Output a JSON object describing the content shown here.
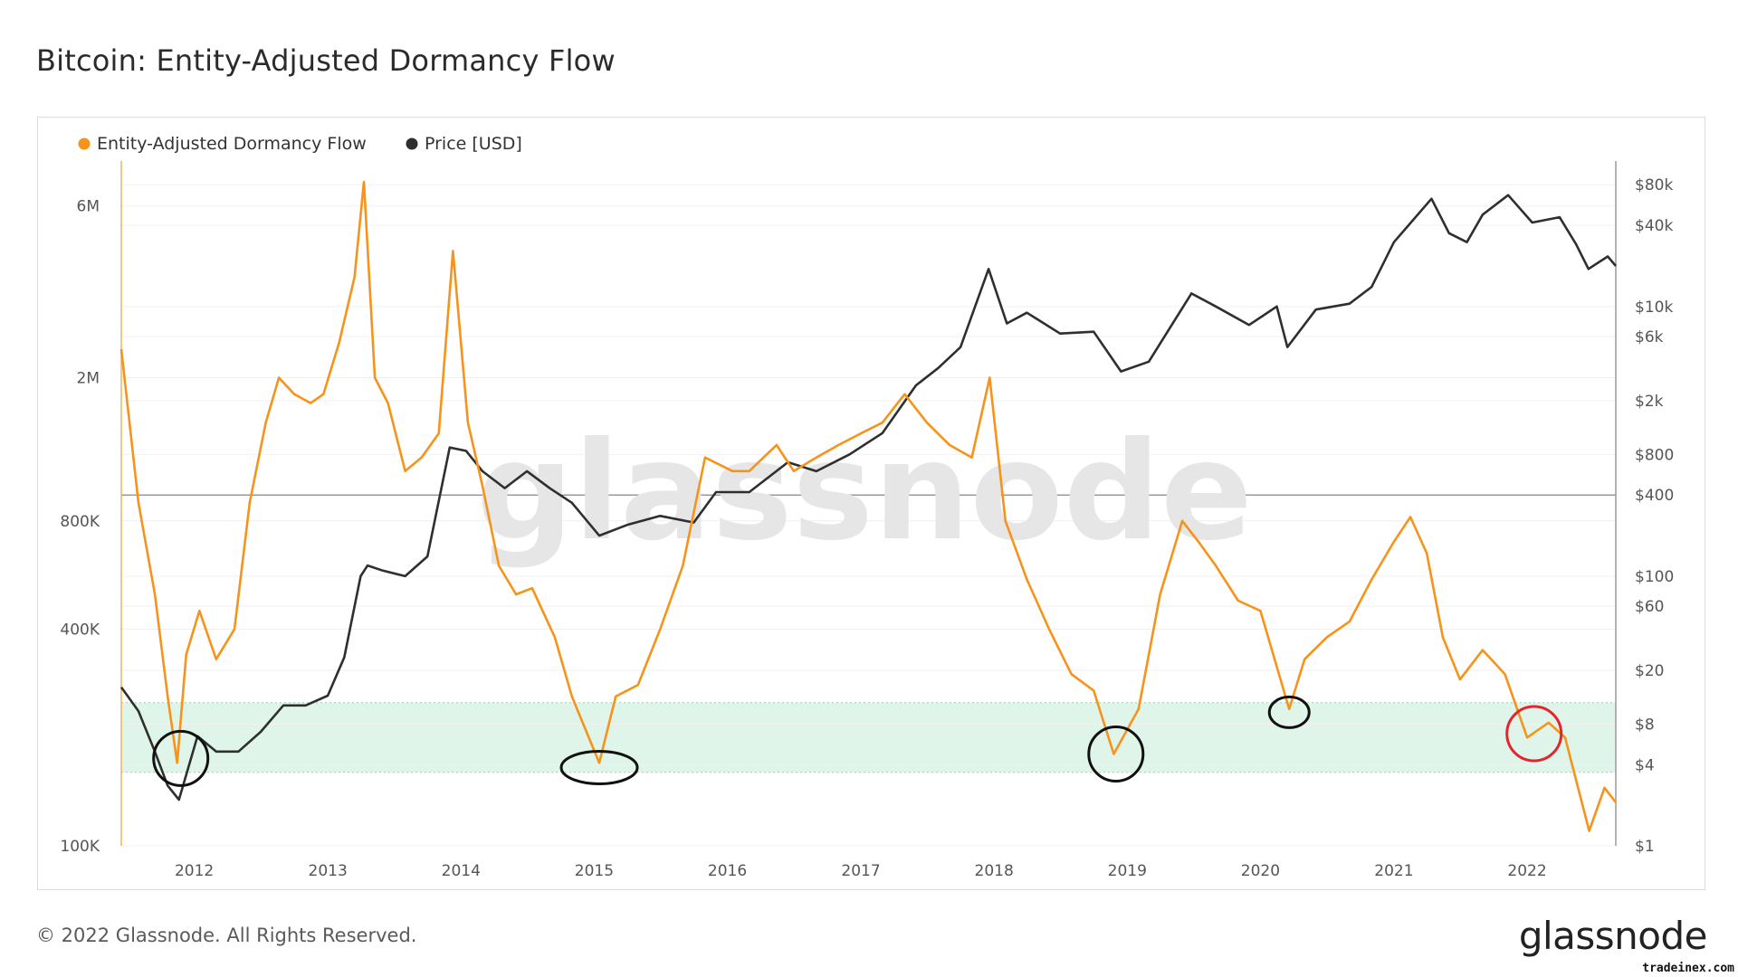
{
  "page": {
    "title": "Bitcoin: Entity-Adjusted Dormancy Flow"
  },
  "footer": {
    "copyright": "© 2022 Glassnode. All Rights Reserved.",
    "brand": "glassnode",
    "source_tag": "tradeinex.com"
  },
  "watermark": "glassnode",
  "colors": {
    "dormancy": "#f7931a",
    "price": "#2f2f2f",
    "band": "#dff5ea",
    "band_line": "#8fd3b0",
    "circle": "#111111",
    "circle_alert": "#e3262e"
  },
  "chart_data": {
    "type": "line",
    "legend": [
      {
        "name": "Entity-Adjusted Dormancy Flow",
        "color": "#f7931a"
      },
      {
        "name": "Price [USD]",
        "color": "#2f2f2f"
      }
    ],
    "legend_position": "top-left",
    "grid": true,
    "x_axis": {
      "type": "date",
      "ticks": [
        "2012",
        "2013",
        "2014",
        "2015",
        "2016",
        "2017",
        "2018",
        "2019",
        "2020",
        "2021",
        "2022"
      ],
      "range": [
        "2011-06-15",
        "2022-09-01"
      ]
    },
    "y_left": {
      "scale": "log",
      "range": [
        100000,
        8000000
      ],
      "ticks": [
        {
          "value": 100000,
          "label": "100K"
        },
        {
          "value": 400000,
          "label": "400K"
        },
        {
          "value": 800000,
          "label": "800K"
        },
        {
          "value": 2000000,
          "label": "2M"
        },
        {
          "value": 6000000,
          "label": "6M"
        }
      ]
    },
    "y_right": {
      "scale": "log",
      "range": [
        1,
        120000
      ],
      "ticks": [
        {
          "value": 1,
          "label": "$1"
        },
        {
          "value": 4,
          "label": "$4"
        },
        {
          "value": 8,
          "label": "$8"
        },
        {
          "value": 20,
          "label": "$20"
        },
        {
          "value": 60,
          "label": "$60"
        },
        {
          "value": 100,
          "label": "$100"
        },
        {
          "value": 400,
          "label": "$400"
        },
        {
          "value": 800,
          "label": "$800"
        },
        {
          "value": 2000,
          "label": "$2k"
        },
        {
          "value": 6000,
          "label": "$6k"
        },
        {
          "value": 10000,
          "label": "$10k"
        },
        {
          "value": 40000,
          "label": "$40k"
        },
        {
          "value": 80000,
          "label": "$80k"
        }
      ]
    },
    "band": {
      "from": 160000,
      "to": 250000
    },
    "series": [
      {
        "name": "Entity-Adjusted Dormancy Flow",
        "axis": "left",
        "points": [
          [
            "2011-06-15",
            2400000
          ],
          [
            "2011-08-01",
            900000
          ],
          [
            "2011-09-15",
            500000
          ],
          [
            "2011-10-20",
            260000
          ],
          [
            "2011-11-15",
            170000
          ],
          [
            "2011-12-10",
            340000
          ],
          [
            "2012-01-15",
            450000
          ],
          [
            "2012-03-01",
            330000
          ],
          [
            "2012-04-20",
            400000
          ],
          [
            "2012-06-01",
            900000
          ],
          [
            "2012-07-15",
            1500000
          ],
          [
            "2012-08-20",
            2000000
          ],
          [
            "2012-10-01",
            1800000
          ],
          [
            "2012-11-15",
            1700000
          ],
          [
            "2012-12-20",
            1800000
          ],
          [
            "2013-02-01",
            2500000
          ],
          [
            "2013-03-15",
            3800000
          ],
          [
            "2013-04-10",
            7000000
          ],
          [
            "2013-05-10",
            2000000
          ],
          [
            "2013-06-15",
            1700000
          ],
          [
            "2013-08-01",
            1100000
          ],
          [
            "2013-09-15",
            1200000
          ],
          [
            "2013-11-01",
            1400000
          ],
          [
            "2013-12-10",
            4500000
          ],
          [
            "2014-01-20",
            1500000
          ],
          [
            "2014-03-01",
            1000000
          ],
          [
            "2014-04-15",
            600000
          ],
          [
            "2014-06-01",
            500000
          ],
          [
            "2014-07-15",
            520000
          ],
          [
            "2014-09-15",
            380000
          ],
          [
            "2014-11-01",
            260000
          ],
          [
            "2015-01-15",
            170000
          ],
          [
            "2015-03-01",
            260000
          ],
          [
            "2015-05-01",
            280000
          ],
          [
            "2015-07-01",
            400000
          ],
          [
            "2015-09-01",
            600000
          ],
          [
            "2015-11-01",
            1200000
          ],
          [
            "2016-01-15",
            1100000
          ],
          [
            "2016-03-01",
            1100000
          ],
          [
            "2016-05-15",
            1300000
          ],
          [
            "2016-07-01",
            1100000
          ],
          [
            "2016-09-01",
            1200000
          ],
          [
            "2016-11-01",
            1300000
          ],
          [
            "2017-01-01",
            1400000
          ],
          [
            "2017-03-01",
            1500000
          ],
          [
            "2017-05-01",
            1800000
          ],
          [
            "2017-07-01",
            1500000
          ],
          [
            "2017-09-01",
            1300000
          ],
          [
            "2017-11-01",
            1200000
          ],
          [
            "2017-12-20",
            2000000
          ],
          [
            "2018-02-01",
            800000
          ],
          [
            "2018-04-01",
            550000
          ],
          [
            "2018-06-01",
            400000
          ],
          [
            "2018-08-01",
            300000
          ],
          [
            "2018-10-01",
            270000
          ],
          [
            "2018-11-25",
            180000
          ],
          [
            "2019-02-01",
            240000
          ],
          [
            "2019-04-01",
            500000
          ],
          [
            "2019-06-01",
            800000
          ],
          [
            "2019-07-15",
            700000
          ],
          [
            "2019-09-01",
            600000
          ],
          [
            "2019-11-01",
            480000
          ],
          [
            "2020-01-01",
            450000
          ],
          [
            "2020-03-20",
            240000
          ],
          [
            "2020-05-01",
            330000
          ],
          [
            "2020-07-01",
            380000
          ],
          [
            "2020-09-01",
            420000
          ],
          [
            "2020-11-01",
            550000
          ],
          [
            "2021-01-01",
            700000
          ],
          [
            "2021-02-15",
            820000
          ],
          [
            "2021-04-01",
            650000
          ],
          [
            "2021-05-15",
            380000
          ],
          [
            "2021-07-01",
            290000
          ],
          [
            "2021-09-01",
            350000
          ],
          [
            "2021-11-01",
            300000
          ],
          [
            "2022-01-01",
            200000
          ],
          [
            "2022-03-01",
            220000
          ],
          [
            "2022-04-15",
            200000
          ],
          [
            "2022-06-20",
            110000
          ],
          [
            "2022-08-01",
            145000
          ],
          [
            "2022-09-01",
            132000
          ]
        ]
      },
      {
        "name": "Price [USD]",
        "axis": "right",
        "points": [
          [
            "2011-06-15",
            15
          ],
          [
            "2011-08-01",
            10
          ],
          [
            "2011-09-15",
            5
          ],
          [
            "2011-10-20",
            2.8
          ],
          [
            "2011-11-20",
            2.2
          ],
          [
            "2012-01-10",
            6.5
          ],
          [
            "2012-03-01",
            5
          ],
          [
            "2012-05-01",
            5
          ],
          [
            "2012-07-01",
            7
          ],
          [
            "2012-09-01",
            11
          ],
          [
            "2012-11-01",
            11
          ],
          [
            "2013-01-01",
            13
          ],
          [
            "2013-02-15",
            25
          ],
          [
            "2013-04-01",
            100
          ],
          [
            "2013-04-20",
            120
          ],
          [
            "2013-06-01",
            110
          ],
          [
            "2013-08-01",
            100
          ],
          [
            "2013-10-01",
            140
          ],
          [
            "2013-12-01",
            900
          ],
          [
            "2014-01-15",
            850
          ],
          [
            "2014-03-01",
            600
          ],
          [
            "2014-05-01",
            450
          ],
          [
            "2014-07-01",
            600
          ],
          [
            "2014-09-01",
            450
          ],
          [
            "2014-11-01",
            350
          ],
          [
            "2015-01-15",
            200
          ],
          [
            "2015-04-01",
            240
          ],
          [
            "2015-07-01",
            280
          ],
          [
            "2015-10-01",
            250
          ],
          [
            "2015-12-01",
            420
          ],
          [
            "2016-03-01",
            420
          ],
          [
            "2016-06-15",
            700
          ],
          [
            "2016-09-01",
            600
          ],
          [
            "2016-12-01",
            800
          ],
          [
            "2017-03-01",
            1150
          ],
          [
            "2017-06-01",
            2600
          ],
          [
            "2017-08-01",
            3500
          ],
          [
            "2017-10-01",
            5000
          ],
          [
            "2017-12-17",
            19000
          ],
          [
            "2018-02-05",
            7500
          ],
          [
            "2018-04-01",
            9000
          ],
          [
            "2018-07-01",
            6300
          ],
          [
            "2018-10-01",
            6500
          ],
          [
            "2018-12-15",
            3300
          ],
          [
            "2019-03-01",
            3900
          ],
          [
            "2019-06-26",
            12500
          ],
          [
            "2019-09-01",
            10000
          ],
          [
            "2019-12-01",
            7300
          ],
          [
            "2020-02-15",
            10000
          ],
          [
            "2020-03-15",
            5000
          ],
          [
            "2020-06-01",
            9500
          ],
          [
            "2020-09-01",
            10500
          ],
          [
            "2020-11-01",
            14000
          ],
          [
            "2021-01-01",
            30000
          ],
          [
            "2021-04-14",
            63000
          ],
          [
            "2021-06-01",
            35000
          ],
          [
            "2021-07-20",
            30000
          ],
          [
            "2021-09-01",
            48000
          ],
          [
            "2021-11-10",
            67000
          ],
          [
            "2022-01-15",
            42000
          ],
          [
            "2022-03-31",
            46000
          ],
          [
            "2022-05-15",
            29000
          ],
          [
            "2022-06-18",
            19000
          ],
          [
            "2022-08-10",
            23500
          ],
          [
            "2022-09-01",
            20000
          ]
        ]
      }
    ],
    "annotations": [
      {
        "shape": "ellipse",
        "date": "2011-11-25",
        "value": 175000,
        "color": "black"
      },
      {
        "shape": "ellipse",
        "date": "2015-01-15",
        "value": 165000,
        "color": "black"
      },
      {
        "shape": "ellipse",
        "date": "2018-12-01",
        "value": 180000,
        "color": "black"
      },
      {
        "shape": "ellipse",
        "date": "2020-03-20",
        "value": 235000,
        "color": "black"
      },
      {
        "shape": "ellipse",
        "date": "2022-01-20",
        "value": 205000,
        "color": "red"
      }
    ]
  }
}
